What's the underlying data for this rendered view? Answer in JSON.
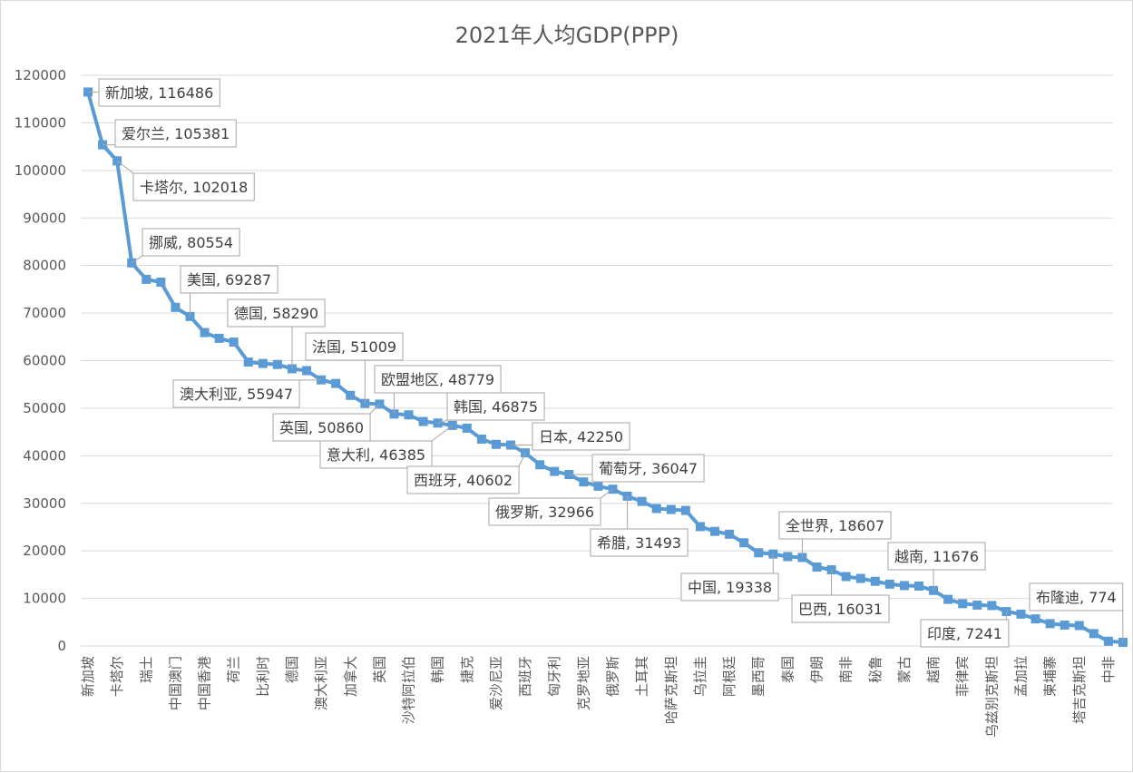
{
  "chart_data": {
    "type": "line",
    "title": "2021年人均GDP(PPP)",
    "xlabel": "",
    "ylabel": "",
    "ylim": [
      0,
      120000
    ],
    "yticks": [
      0,
      10000,
      20000,
      30000,
      40000,
      50000,
      60000,
      70000,
      80000,
      90000,
      100000,
      110000,
      120000
    ],
    "grid": true,
    "legend": "none",
    "series_color": "#5b9bd5",
    "series": [
      {
        "name": "人均GDP(PPP)",
        "points": [
          {
            "c": "新加坡",
            "v": 116486,
            "t": true
          },
          {
            "c": "爱尔兰",
            "v": 105381
          },
          {
            "c": "卡塔尔",
            "v": 102018,
            "t": true
          },
          {
            "c": "挪威",
            "v": 80554
          },
          {
            "c": "瑞士",
            "v": 77100,
            "t": true
          },
          {
            "c": "",
            "v": 76500
          },
          {
            "c": "中国澳门",
            "v": 71200,
            "t": true
          },
          {
            "c": "美国",
            "v": 69287
          },
          {
            "c": "中国香港",
            "v": 65900,
            "t": true
          },
          {
            "c": "",
            "v": 64700
          },
          {
            "c": "荷兰",
            "v": 63900,
            "t": true
          },
          {
            "c": "",
            "v": 59700
          },
          {
            "c": "比利时",
            "v": 59400,
            "t": true
          },
          {
            "c": "",
            "v": 59200
          },
          {
            "c": "德国",
            "v": 58290,
            "t": true
          },
          {
            "c": "",
            "v": 57900
          },
          {
            "c": "澳大利亚",
            "v": 55947,
            "t": true
          },
          {
            "c": "",
            "v": 55200
          },
          {
            "c": "加拿大",
            "v": 52700,
            "t": true
          },
          {
            "c": "法国",
            "v": 51009
          },
          {
            "c": "英国",
            "v": 50860,
            "t": true
          },
          {
            "c": "欧盟地区",
            "v": 48779
          },
          {
            "c": "沙特阿拉伯",
            "v": 48600,
            "t": true
          },
          {
            "c": "",
            "v": 47200
          },
          {
            "c": "韩国",
            "v": 46875,
            "t": true
          },
          {
            "c": "意大利",
            "v": 46385
          },
          {
            "c": "捷克",
            "v": 45800,
            "t": true
          },
          {
            "c": "",
            "v": 43500
          },
          {
            "c": "爱沙尼亚",
            "v": 42400,
            "t": true
          },
          {
            "c": "日本",
            "v": 42250
          },
          {
            "c": "西班牙",
            "v": 40602,
            "t": true
          },
          {
            "c": "",
            "v": 38100
          },
          {
            "c": "匈牙利",
            "v": 36700,
            "t": true
          },
          {
            "c": "葡萄牙",
            "v": 36047
          },
          {
            "c": "克罗地亚",
            "v": 34500,
            "t": true
          },
          {
            "c": "",
            "v": 33600
          },
          {
            "c": "俄罗斯",
            "v": 32966,
            "t": true
          },
          {
            "c": "希腊",
            "v": 31493
          },
          {
            "c": "土耳其",
            "v": 30400,
            "t": true
          },
          {
            "c": "",
            "v": 28900
          },
          {
            "c": "哈萨克斯坦",
            "v": 28700,
            "t": true
          },
          {
            "c": "",
            "v": 28500
          },
          {
            "c": "乌拉圭",
            "v": 25100,
            "t": true
          },
          {
            "c": "",
            "v": 24100
          },
          {
            "c": "阿根廷",
            "v": 23500,
            "t": true
          },
          {
            "c": "",
            "v": 21700
          },
          {
            "c": "墨西哥",
            "v": 19600,
            "t": true
          },
          {
            "c": "中国",
            "v": 19338
          },
          {
            "c": "泰国",
            "v": 18800,
            "t": true
          },
          {
            "c": "全世界",
            "v": 18607
          },
          {
            "c": "伊朗",
            "v": 16600,
            "t": true
          },
          {
            "c": "巴西",
            "v": 16031
          },
          {
            "c": "南非",
            "v": 14600,
            "t": true
          },
          {
            "c": "",
            "v": 14200
          },
          {
            "c": "秘鲁",
            "v": 13600,
            "t": true
          },
          {
            "c": "",
            "v": 13000
          },
          {
            "c": "蒙古",
            "v": 12700,
            "t": true
          },
          {
            "c": "",
            "v": 12600
          },
          {
            "c": "越南",
            "v": 11676,
            "t": true
          },
          {
            "c": "",
            "v": 9800
          },
          {
            "c": "菲律宾",
            "v": 8900,
            "t": true
          },
          {
            "c": "",
            "v": 8600
          },
          {
            "c": "乌兹别克斯坦",
            "v": 8500,
            "t": true
          },
          {
            "c": "印度",
            "v": 7241
          },
          {
            "c": "孟加拉",
            "v": 6700,
            "t": true
          },
          {
            "c": "",
            "v": 5700
          },
          {
            "c": "柬埔寨",
            "v": 4700,
            "t": true
          },
          {
            "c": "",
            "v": 4400
          },
          {
            "c": "塔吉克斯坦",
            "v": 4300,
            "t": true
          },
          {
            "c": "",
            "v": 2600
          },
          {
            "c": "中非",
            "v": 1000,
            "t": true
          },
          {
            "c": "布隆迪",
            "v": 774
          }
        ]
      }
    ],
    "data_labels": [
      {
        "i": 0,
        "text": "新加坡, 116486"
      },
      {
        "i": 1,
        "text": "爱尔兰, 105381"
      },
      {
        "i": 2,
        "text": "卡塔尔, 102018"
      },
      {
        "i": 3,
        "text": "挪威, 80554"
      },
      {
        "i": 7,
        "text": "美国, 69287"
      },
      {
        "i": 14,
        "text": "德国, 58290"
      },
      {
        "i": 16,
        "text": "澳大利亚, 55947"
      },
      {
        "i": 19,
        "text": "法国, 51009"
      },
      {
        "i": 20,
        "text": "英国, 50860"
      },
      {
        "i": 21,
        "text": "欧盟地区, 48779"
      },
      {
        "i": 24,
        "text": "韩国, 46875"
      },
      {
        "i": 25,
        "text": "意大利, 46385"
      },
      {
        "i": 29,
        "text": "日本, 42250"
      },
      {
        "i": 30,
        "text": "西班牙, 40602"
      },
      {
        "i": 33,
        "text": "葡萄牙, 36047"
      },
      {
        "i": 36,
        "text": "俄罗斯, 32966"
      },
      {
        "i": 37,
        "text": "希腊, 31493"
      },
      {
        "i": 47,
        "text": "中国, 19338"
      },
      {
        "i": 49,
        "text": "全世界, 18607"
      },
      {
        "i": 51,
        "text": "巴西, 16031"
      },
      {
        "i": 58,
        "text": "越南, 11676"
      },
      {
        "i": 63,
        "text": "印度, 7241"
      },
      {
        "i": 71,
        "text": "布隆迪, 774"
      }
    ]
  }
}
